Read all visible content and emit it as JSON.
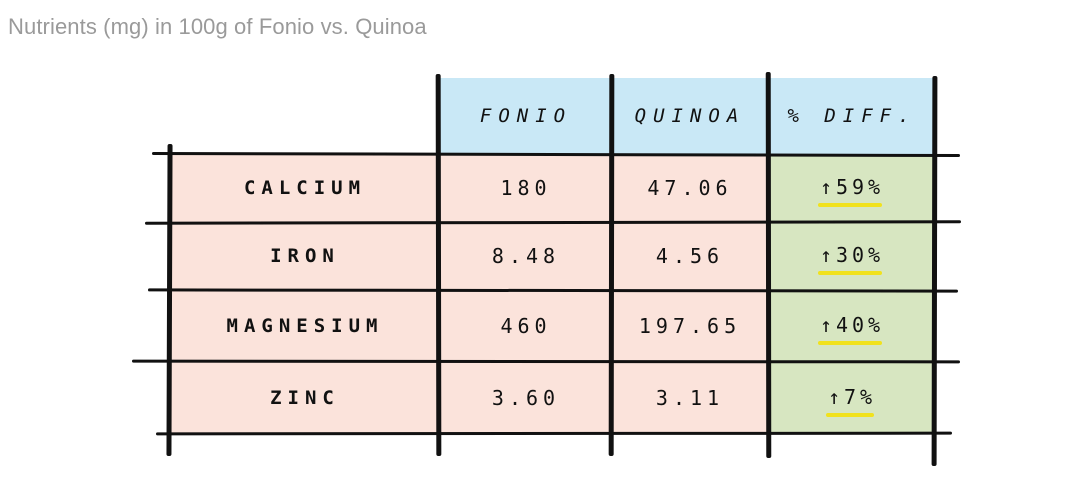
{
  "chart_data": {
    "type": "table",
    "title": "Nutrients (mg) in 100g of Fonio vs. Quinoa",
    "columns": [
      "FONIO",
      "QUINOA",
      "% DIFF."
    ],
    "rows": [
      {
        "nutrient": "CALCIUM",
        "fonio": "180",
        "quinoa": "47.06",
        "diff": "↑59%"
      },
      {
        "nutrient": "IRON",
        "fonio": "8.48",
        "quinoa": "4.56",
        "diff": "↑30%"
      },
      {
        "nutrient": "MAGNESIUM",
        "fonio": "460",
        "quinoa": "197.65",
        "diff": "↑40%"
      },
      {
        "nutrient": "ZINC",
        "fonio": "3.60",
        "quinoa": "3.11",
        "diff": "↑7%"
      }
    ]
  },
  "colors": {
    "header_bg": "#c9e8f6",
    "row_bg": "#fbe3db",
    "diff_bg": "#d7e6c1",
    "underline": "#f1e21d",
    "title_text": "#9a9a9a"
  }
}
